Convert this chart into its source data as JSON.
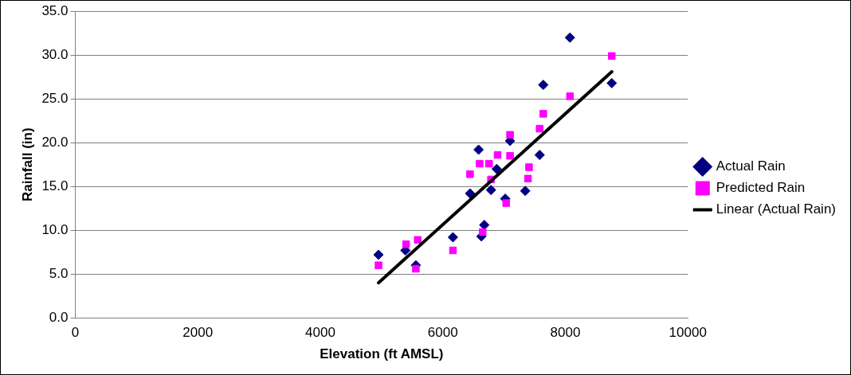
{
  "chart_data": {
    "type": "scatter",
    "xlabel": "Elevation (ft AMSL)",
    "ylabel": "Rainfall (in)",
    "xlim": [
      0,
      10000
    ],
    "xticks": [
      0,
      2000,
      4000,
      6000,
      8000,
      10000
    ],
    "ylim": [
      0,
      35
    ],
    "yticks": [
      {
        "value": 0,
        "label": "0.0"
      },
      {
        "value": 5,
        "label": "5.0"
      },
      {
        "value": 10,
        "label": "10.0"
      },
      {
        "value": 15,
        "label": "15.0"
      },
      {
        "value": 20,
        "label": "20.0"
      },
      {
        "value": 25,
        "label": "25.0"
      },
      {
        "value": 30,
        "label": "30.0"
      },
      {
        "value": 35,
        "label": "35.0"
      }
    ],
    "grid": "y",
    "legend": "right",
    "series": [
      {
        "name": "Actual Rain",
        "color": "#000080",
        "marker": "diamond",
        "x": [
          4950,
          5560,
          5390,
          6165,
          6584,
          6444,
          6786,
          6880,
          6677,
          6630,
          7019,
          7097,
          7345,
          7580,
          7640,
          8075,
          8758
        ],
        "values": [
          7.2,
          6.0,
          7.7,
          9.2,
          19.2,
          14.2,
          14.6,
          17.0,
          10.6,
          9.3,
          13.6,
          20.2,
          14.5,
          18.6,
          26.6,
          32.0,
          26.8
        ]
      },
      {
        "name": "Predicted Rain",
        "color": "#ff00ff",
        "marker": "square",
        "x": [
          4950,
          5400,
          5590,
          5560,
          6165,
          6650,
          6444,
          6600,
          6755,
          6894,
          7097,
          6786,
          7034,
          7097,
          7407,
          7390,
          7580,
          7640,
          8075,
          8758
        ],
        "values": [
          6.0,
          8.4,
          8.9,
          5.6,
          7.7,
          9.8,
          16.4,
          17.6,
          17.6,
          18.6,
          18.5,
          15.8,
          13.1,
          20.9,
          17.2,
          15.9,
          21.6,
          23.3,
          25.3,
          29.9
        ]
      },
      {
        "name": "Linear (Actual Rain)",
        "type": "line",
        "color": "#000000",
        "marker": "none",
        "x": [
          4950,
          8758
        ],
        "values": [
          4.0,
          28.1
        ]
      }
    ]
  }
}
